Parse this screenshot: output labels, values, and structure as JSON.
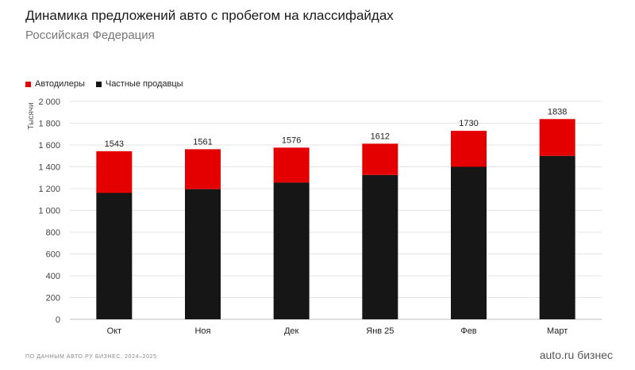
{
  "header": {
    "title": "Динамика предложений авто с пробегом на классифайдах",
    "subtitle": "Российская Федерация"
  },
  "legend": {
    "dealers": "Автодилеры",
    "private": "Частные продавцы"
  },
  "footer": {
    "source": "ПО ДАННЫМ АВТО.РУ БИЗНЕС, 2024–2025",
    "brand": "auto.ru бизнес"
  },
  "colors": {
    "dealers": "#e50000",
    "private": "#161616",
    "grid": "#e4e4e4"
  },
  "chart_data": {
    "type": "bar",
    "stacked": true,
    "categories": [
      "Окт",
      "Ноя",
      "Дек",
      "Янв 25",
      "Фев",
      "Март"
    ],
    "series": [
      {
        "name": "Частные продавцы",
        "values": [
          1160,
          1195,
          1255,
          1325,
          1400,
          1500
        ]
      },
      {
        "name": "Автодилеры",
        "values": [
          383,
          366,
          321,
          287,
          330,
          338
        ]
      }
    ],
    "totals": [
      1543,
      1561,
      1576,
      1612,
      1730,
      1838
    ],
    "total_labels": [
      "1543",
      "1561",
      "1576",
      "1612",
      "1730",
      "1838"
    ],
    "ylabel": "Тысячи",
    "ylim": [
      0,
      2000
    ],
    "yticks": [
      0,
      200,
      400,
      600,
      800,
      1000,
      1200,
      1400,
      1600,
      1800,
      2000
    ],
    "ytick_labels": [
      "0",
      "200",
      "400",
      "600",
      "800",
      "1 000",
      "1 200",
      "1 400",
      "1 600",
      "1 800",
      "2 000"
    ],
    "grid": true,
    "legend_position": "top-left"
  }
}
